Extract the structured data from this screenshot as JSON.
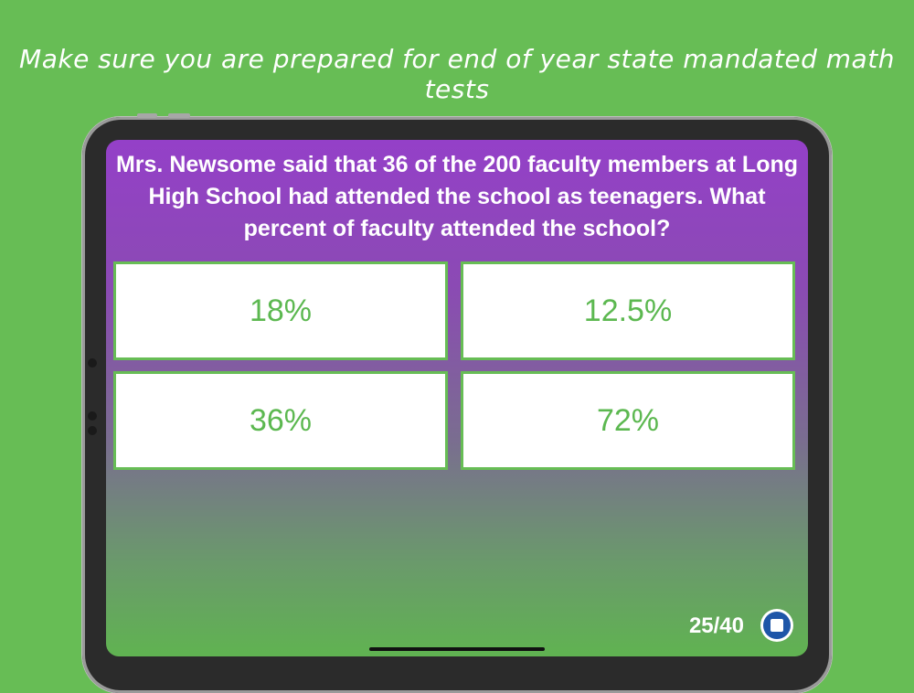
{
  "promo": {
    "text": "Make sure you are prepared for end of year state mandated math tests"
  },
  "quiz": {
    "question": "Mrs. Newsome said that 36 of the 200 faculty members at Long High School had attended the school as teenagers. What percent of faculty attended the school?",
    "answers": [
      "18%",
      "12.5%",
      "36%",
      "72%"
    ],
    "progress": "25/40",
    "stop_icon": "stop-icon"
  },
  "colors": {
    "background": "#67bd55",
    "gradient_top": "#9440c8",
    "gradient_bottom": "#60b351",
    "answer_text": "#5cb850",
    "stop_button": "#1e56a8"
  }
}
